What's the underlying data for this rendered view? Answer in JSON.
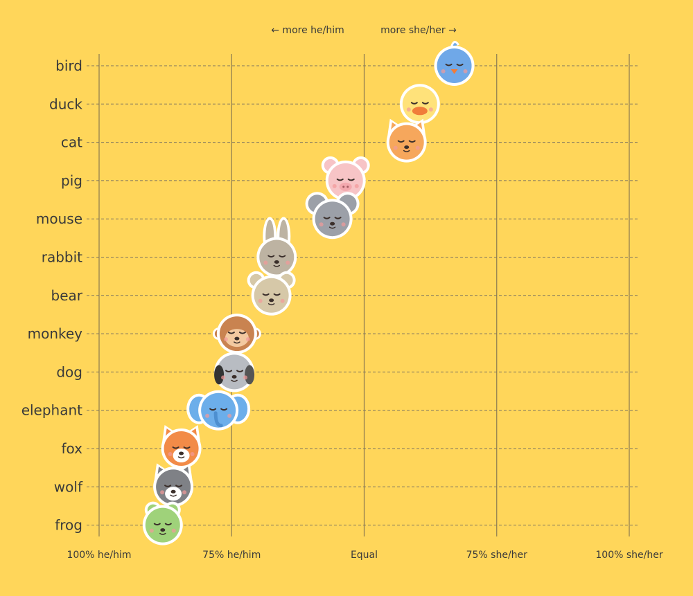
{
  "chart_data": {
    "type": "scatter",
    "direction_labels": {
      "left": "← more he/him",
      "right": "more she/her →"
    },
    "x_ticks": [
      {
        "value": -100,
        "label": "100% he/him"
      },
      {
        "value": -50,
        "label": "75% he/him"
      },
      {
        "value": 0,
        "label": "Equal"
      },
      {
        "value": 50,
        "label": "75% she/her"
      },
      {
        "value": 100,
        "label": "100% she/her"
      }
    ],
    "xlim": [
      -100,
      100
    ],
    "grid": "vertical solid at ticks, horizontal dashed per category",
    "points": [
      {
        "animal": "bird",
        "value": 34,
        "color": "#6FA8E8",
        "icon": "bird-icon"
      },
      {
        "animal": "duck",
        "value": 21,
        "color": "#FFE27A",
        "icon": "duck-icon"
      },
      {
        "animal": "cat",
        "value": 16,
        "color": "#F6A75C",
        "icon": "cat-icon"
      },
      {
        "animal": "pig",
        "value": -7,
        "color": "#F7C4C6",
        "icon": "pig-icon"
      },
      {
        "animal": "mouse",
        "value": -12,
        "color": "#9CA0A8",
        "icon": "mouse-icon"
      },
      {
        "animal": "rabbit",
        "value": -33,
        "color": "#BDB3A2",
        "icon": "rabbit-icon"
      },
      {
        "animal": "bear",
        "value": -35,
        "color": "#D6C8A8",
        "icon": "bear-icon"
      },
      {
        "animal": "monkey",
        "value": -48,
        "color": "#C98350",
        "icon": "monkey-icon"
      },
      {
        "animal": "dog",
        "value": -49,
        "color": "#B8BCC2",
        "icon": "dog-icon"
      },
      {
        "animal": "elephant",
        "value": -55,
        "color": "#6CAEEA",
        "icon": "elephant-icon"
      },
      {
        "animal": "fox",
        "value": -69,
        "color": "#F28B48",
        "icon": "fox-icon"
      },
      {
        "animal": "wolf",
        "value": -72,
        "color": "#7F8186",
        "icon": "wolf-icon"
      },
      {
        "animal": "frog",
        "value": -76,
        "color": "#9FD27A",
        "icon": "frog-icon"
      }
    ]
  }
}
